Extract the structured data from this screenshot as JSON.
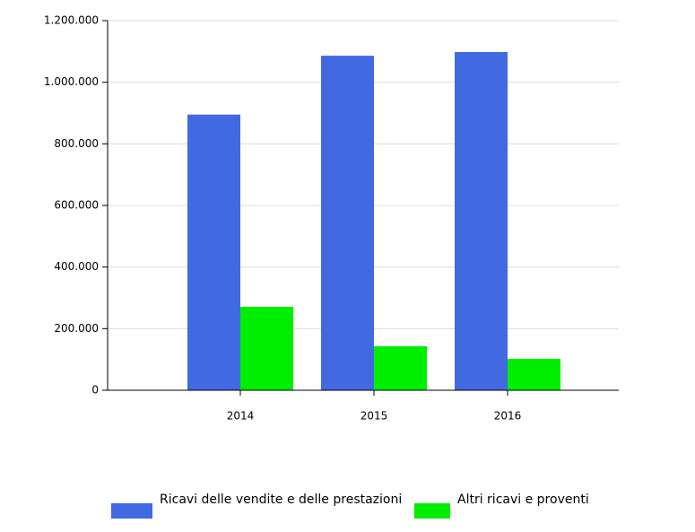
{
  "chart_data": {
    "type": "bar",
    "categories": [
      "2014",
      "2015",
      "2016"
    ],
    "series": [
      {
        "name": "Ricavi delle vendite e delle prestazioni",
        "color": "#4169e1",
        "values": [
          895000,
          1086000,
          1098000
        ]
      },
      {
        "name": "Altri ricavi e proventi",
        "color": "#00ee00",
        "values": [
          271000,
          143000,
          102000
        ]
      }
    ],
    "ylim": [
      0,
      1200000
    ],
    "yticks": [
      0,
      {
        "value": 200000,
        "label": "200.000"
      },
      {
        "value": 400000,
        "label": "400.000"
      },
      {
        "value": 600000,
        "label": "600.000"
      },
      {
        "value": 800000,
        "label": "800.000"
      },
      {
        "value": 1000000,
        "label": "1.000.000"
      },
      {
        "value": 1200000,
        "label": "1.200.000"
      }
    ],
    "grid": true,
    "legend": "bottom"
  }
}
